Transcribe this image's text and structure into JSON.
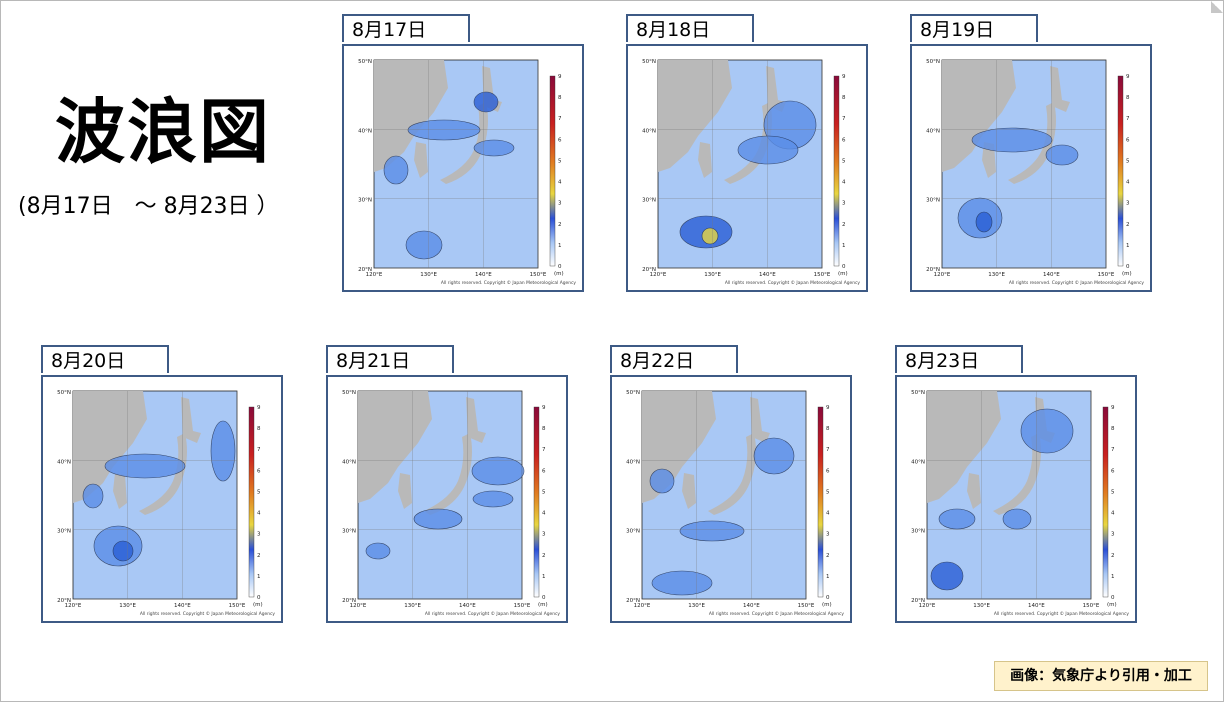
{
  "title": "波浪図",
  "date_range": "(8月17日　～ 8月23日 ）",
  "panels": [
    {
      "date": "8月17日"
    },
    {
      "date": "8月18日"
    },
    {
      "date": "8月19日"
    },
    {
      "date": "8月20日"
    },
    {
      "date": "8月21日"
    },
    {
      "date": "8月22日"
    },
    {
      "date": "8月23日"
    }
  ],
  "map": {
    "lat_labels": [
      "50°N",
      "40°N",
      "30°N",
      "20°N"
    ],
    "lon_labels": [
      "120°E",
      "130°E",
      "140°E",
      "150°E"
    ],
    "scale_values": [
      "9",
      "8",
      "7",
      "6",
      "5",
      "4",
      "3",
      "2",
      "1",
      "0"
    ],
    "unit": "(m)",
    "credit": "All rights reserved. Copyright © Japan Meteorological Agency"
  },
  "source_note": "画像：気象庁より引用・加工",
  "colors": {
    "frame": "#3d5a85",
    "land": "#b9b9b9",
    "sea_base": "#a9c8f5",
    "wave_mid": "#5b8ee8",
    "wave_high": "#2a5fd6",
    "note_bg": "#fff2cc"
  }
}
